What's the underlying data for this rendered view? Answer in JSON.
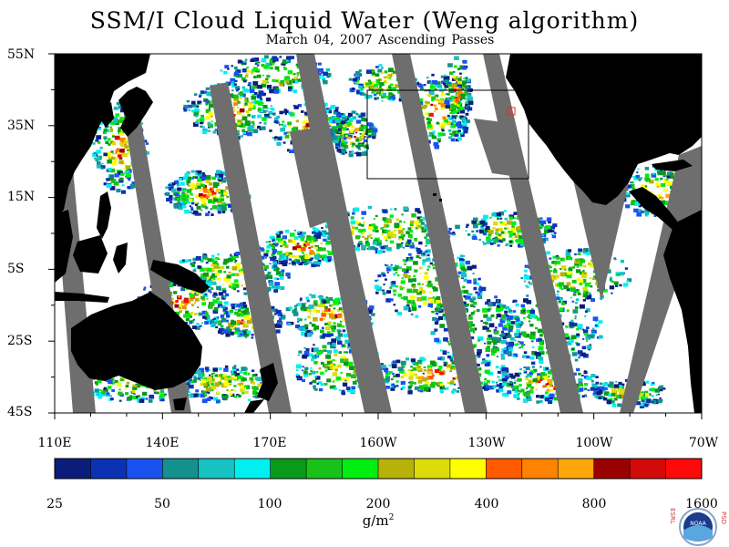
{
  "title": "SSM/I Cloud Liquid Water (Weng algorithm)",
  "subtitle": "March 04, 2007  Ascending Passes",
  "lat_labels": [
    "55N",
    "35N",
    "15N",
    "5S",
    "25S",
    "45S"
  ],
  "lon_labels": [
    "110E",
    "140E",
    "170E",
    "160W",
    "130W",
    "100W",
    "70W"
  ],
  "colorbar": {
    "tick_labels": [
      "25",
      "50",
      "100",
      "200",
      "400",
      "800",
      "1600"
    ],
    "colors": [
      "#0b1d7a",
      "#0a32b3",
      "#1a52f0",
      "#14918f",
      "#18c2c2",
      "#00f0f0",
      "#0a9a1a",
      "#19c219",
      "#00ee10",
      "#b6b209",
      "#dcdc0a",
      "#ffff00",
      "#ff5a00",
      "#ff8200",
      "#ffa60a",
      "#9a0000",
      "#d20a0a",
      "#ff0a0a"
    ]
  },
  "units": {
    "base": "g/m",
    "exponent": "2"
  },
  "colors": {
    "land": "#000000",
    "no_data": "#6e6e6e",
    "background": "#ffffff"
  },
  "logo": {
    "left_text": "ESRL",
    "right_text": "PSD",
    "center_text": "NOAA"
  }
}
